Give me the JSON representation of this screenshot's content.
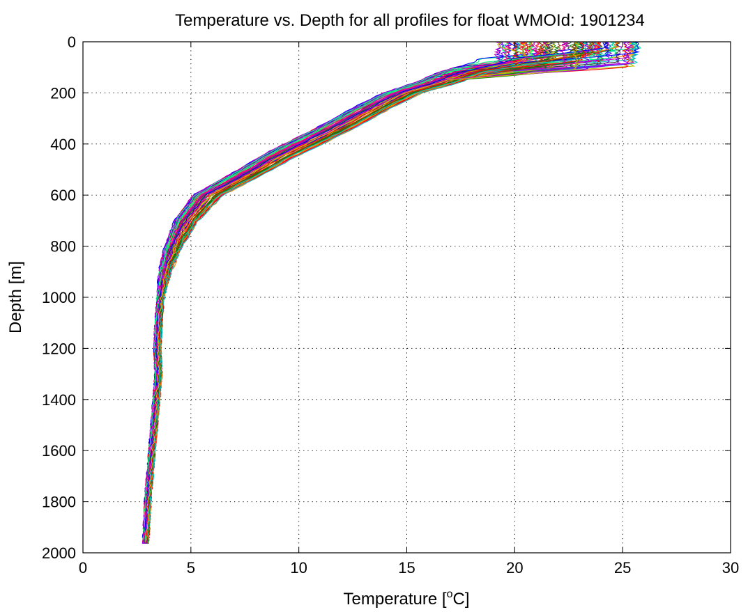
{
  "chart_data": {
    "type": "line",
    "title": "Temperature vs. Depth for all profiles for float WMOId: 1901234",
    "xlabel_prefix": "Temperature [",
    "xlabel_sup": "o",
    "xlabel_suffix": "C]",
    "ylabel": "Depth [m]",
    "xlim": [
      0,
      30
    ],
    "ylim": [
      0,
      2000
    ],
    "y_reversed": true,
    "grid": true,
    "xticks": [
      "0",
      "5",
      "10",
      "15",
      "20",
      "25",
      "30"
    ],
    "yticks": [
      "0",
      "200",
      "400",
      "600",
      "800",
      "1000",
      "1200",
      "1400",
      "1600",
      "1800",
      "2000"
    ],
    "profile_count": 90,
    "mean_profile": [
      {
        "depth": 0,
        "temp": 21.0
      },
      {
        "depth": 40,
        "temp": 20.8
      },
      {
        "depth": 80,
        "temp": 19.8
      },
      {
        "depth": 120,
        "temp": 17.6
      },
      {
        "depth": 160,
        "temp": 16.4
      },
      {
        "depth": 200,
        "temp": 14.8
      },
      {
        "depth": 250,
        "temp": 13.6
      },
      {
        "depth": 300,
        "temp": 12.5
      },
      {
        "depth": 350,
        "temp": 11.4
      },
      {
        "depth": 400,
        "temp": 10.2
      },
      {
        "depth": 450,
        "temp": 9.0
      },
      {
        "depth": 500,
        "temp": 8.0
      },
      {
        "depth": 550,
        "temp": 6.9
      },
      {
        "depth": 600,
        "temp": 5.8
      },
      {
        "depth": 700,
        "temp": 4.8
      },
      {
        "depth": 800,
        "temp": 4.2
      },
      {
        "depth": 900,
        "temp": 3.8
      },
      {
        "depth": 1000,
        "temp": 3.6
      },
      {
        "depth": 1100,
        "temp": 3.5
      },
      {
        "depth": 1200,
        "temp": 3.45
      },
      {
        "depth": 1300,
        "temp": 3.5
      },
      {
        "depth": 1400,
        "temp": 3.4
      },
      {
        "depth": 1500,
        "temp": 3.3
      },
      {
        "depth": 1600,
        "temp": 3.2
      },
      {
        "depth": 1700,
        "temp": 3.1
      },
      {
        "depth": 1800,
        "temp": 3.0
      },
      {
        "depth": 1900,
        "temp": 2.95
      },
      {
        "depth": 1975,
        "temp": 2.9
      }
    ],
    "spread_profile": [
      {
        "depth": 0,
        "spread": 2.6
      },
      {
        "depth": 60,
        "spread": 2.2
      },
      {
        "depth": 120,
        "spread": 1.2
      },
      {
        "depth": 200,
        "spread": 0.9
      },
      {
        "depth": 400,
        "spread": 0.9
      },
      {
        "depth": 600,
        "spread": 0.7
      },
      {
        "depth": 800,
        "spread": 0.4
      },
      {
        "depth": 1000,
        "spread": 0.15
      },
      {
        "depth": 1975,
        "spread": 0.12
      }
    ],
    "series_colors": [
      "#0000ff",
      "#008000",
      "#ff0000",
      "#00bfbf",
      "#bf00bf",
      "#bfbf00",
      "#404040",
      "#ff7f00",
      "#7f00ff",
      "#00ff7f",
      "#7f3f00",
      "#ff007f"
    ]
  }
}
